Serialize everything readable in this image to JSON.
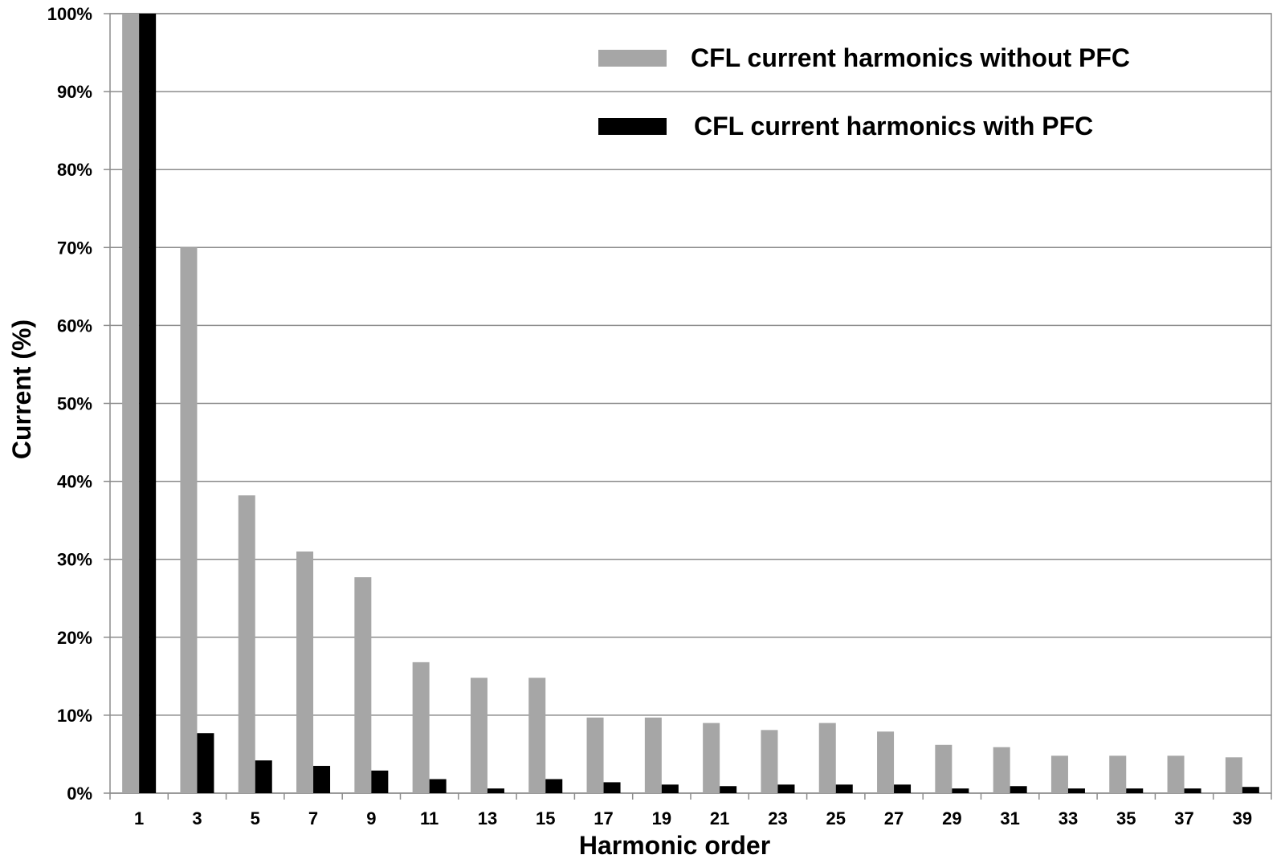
{
  "chart_data": {
    "type": "bar",
    "xlabel": "Harmonic order",
    "ylabel": "Current (%)",
    "ylim": [
      0,
      100
    ],
    "y_ticks": [
      "0%",
      "10%",
      "20%",
      "30%",
      "40%",
      "50%",
      "60%",
      "70%",
      "80%",
      "90%",
      "100%"
    ],
    "categories": [
      "1",
      "3",
      "5",
      "7",
      "9",
      "11",
      "13",
      "15",
      "17",
      "19",
      "21",
      "23",
      "25",
      "27",
      "29",
      "31",
      "33",
      "35",
      "37",
      "39"
    ],
    "series": [
      {
        "name": "CFL current harmonics without PFC",
        "color": "#a6a6a6",
        "values": [
          100,
          70,
          38.2,
          31,
          27.7,
          16.8,
          14.8,
          14.8,
          9.7,
          9.7,
          9,
          8.1,
          9,
          7.9,
          6.2,
          5.9,
          4.8,
          4.8,
          4.8,
          4.6
        ]
      },
      {
        "name": "CFL current harmonics with PFC",
        "color": "#000000",
        "values": [
          100,
          7.7,
          4.2,
          3.5,
          2.9,
          1.8,
          0.6,
          1.8,
          1.4,
          1.1,
          0.9,
          1.1,
          1.1,
          1.1,
          0.6,
          0.9,
          0.6,
          0.6,
          0.6,
          0.8
        ]
      }
    ],
    "grid": true,
    "legend_position": "top-right"
  }
}
